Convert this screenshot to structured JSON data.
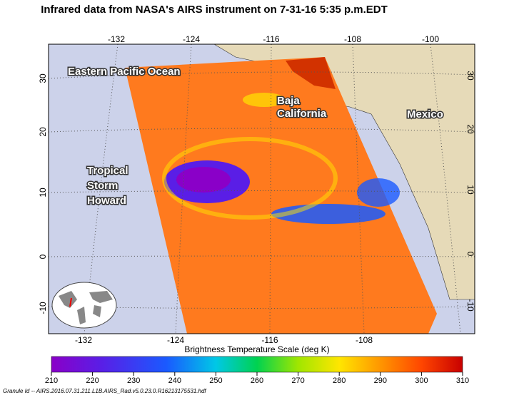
{
  "title": "Infrared data from NASA's AIRS instrument on 7-31-16 5:35 p.m.EDT",
  "map": {
    "top_lon_labels": [
      "-132",
      "-124",
      "-116",
      "-108",
      "-100"
    ],
    "bottom_lon_labels": [
      "-132",
      "-124",
      "-116",
      "-108"
    ],
    "left_lat_labels": [
      "30",
      "20",
      "10",
      "0",
      "-10"
    ],
    "right_lat_labels": [
      "30",
      "20",
      "10",
      "0",
      "-10"
    ],
    "annotations": {
      "ocean": "Eastern Pacific Ocean",
      "baja": [
        "Baja",
        "California"
      ],
      "mexico": "Mexico",
      "storm": [
        "Tropical",
        "Storm",
        "Howard"
      ]
    }
  },
  "colorbar": {
    "label": "Brightness Temperature Scale (deg K)",
    "range": [
      210,
      310
    ],
    "ticks": [
      210,
      220,
      230,
      240,
      250,
      260,
      270,
      280,
      290,
      300,
      310
    ]
  },
  "footer": "Granule Id -- AIRS.2016.07.31.211.L1B.AIRS_Rad.v5.0.23.0.R16213175531.hdf"
}
